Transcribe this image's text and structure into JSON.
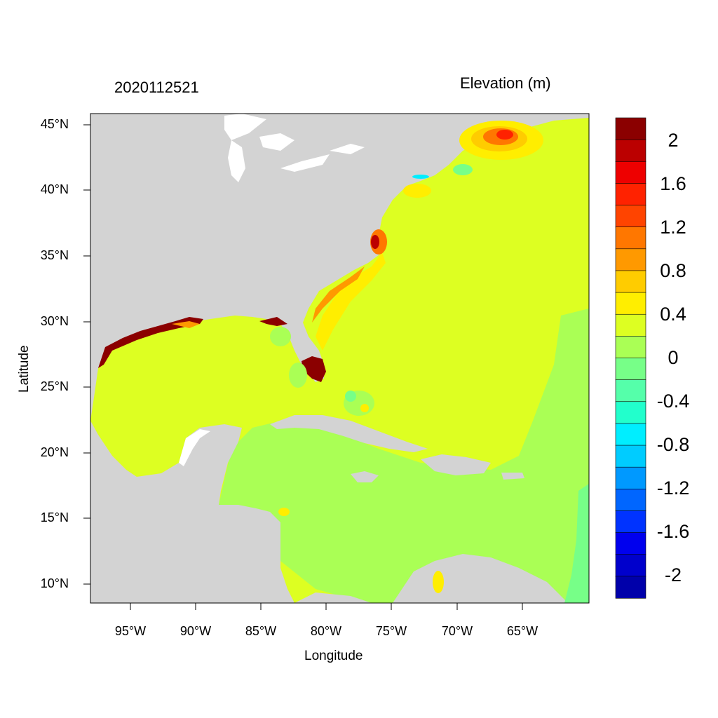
{
  "header": {
    "timestamp": "2020112521",
    "variable_title": "Elevation (m)"
  },
  "axes": {
    "x_title": "Longitude",
    "y_title": "Latitude",
    "lat_ticks": [
      "45°N",
      "40°N",
      "35°N",
      "30°N",
      "25°N",
      "20°N",
      "15°N",
      "10°N"
    ],
    "lon_ticks": [
      "95°W",
      "90°W",
      "85°W",
      "80°W",
      "75°W",
      "70°W",
      "65°W"
    ]
  },
  "colorbar": {
    "labels": [
      "2",
      "1.6",
      "1.2",
      "0.8",
      "0.4",
      "0",
      "-0.4",
      "-0.8",
      "-1.2",
      "-1.6",
      "-2"
    ],
    "colors": [
      "#8b0000",
      "#bb0000",
      "#ee0000",
      "#ff2200",
      "#ff4400",
      "#ff7700",
      "#ff9900",
      "#ffcc00",
      "#ffee00",
      "#ddff22",
      "#aaff55",
      "#77ff88",
      "#55ffaa",
      "#22ffcc",
      "#00eeff",
      "#00ccff",
      "#0099ff",
      "#0066ff",
      "#0033ff",
      "#0000ee",
      "#0000cc",
      "#0000aa"
    ]
  },
  "map": {
    "land_color": "#d3d3d3",
    "lake_color": "#ffffff",
    "ocean_background": "#ddff22",
    "caribbean_color": "#aaff55",
    "surge_high_color": "#8b0000",
    "surge_mid_color": "#ffcc00",
    "surge_orange_color": "#ff9900",
    "surge_yellow_color": "#ffee00",
    "negative_color": "#77ff88"
  }
}
